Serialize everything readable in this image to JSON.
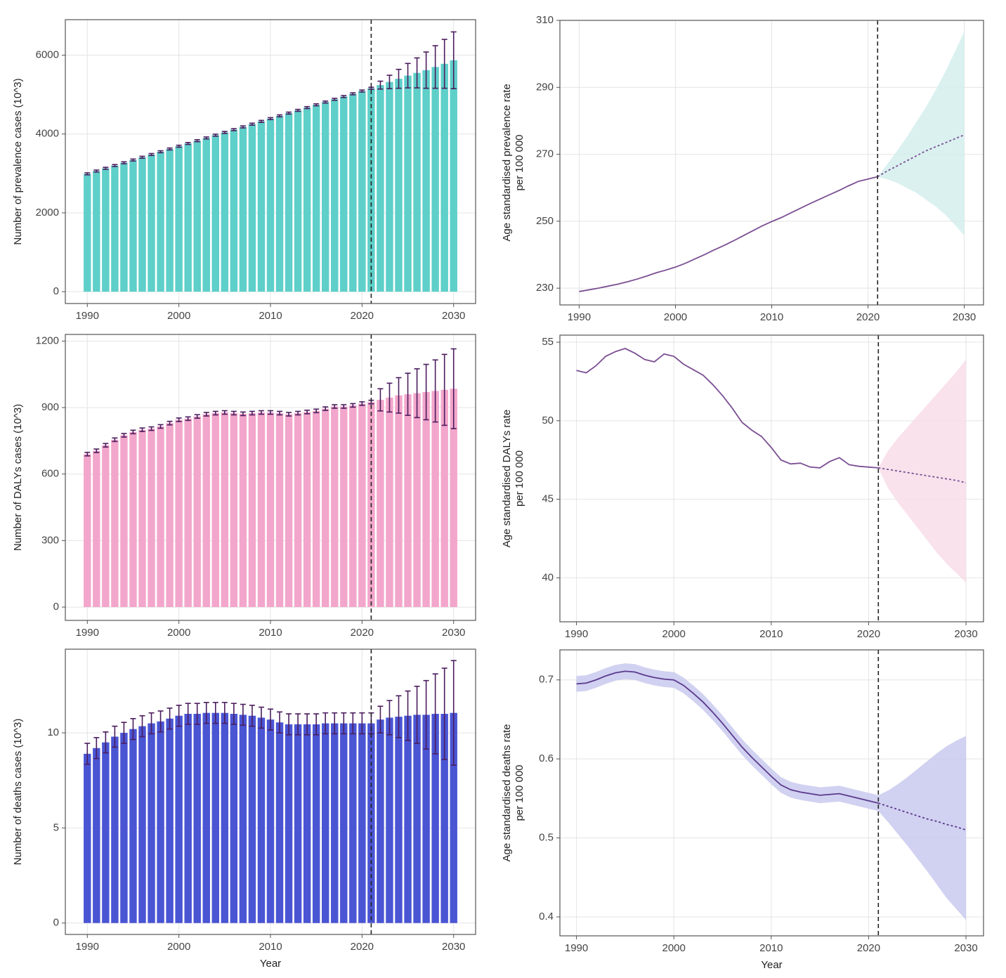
{
  "chart_data": [
    {
      "type": "bar",
      "ylabel": [
        "Number of prevalence cases (10^3)"
      ],
      "x": [
        1990,
        1991,
        1992,
        1993,
        1994,
        1995,
        1996,
        1997,
        1998,
        1999,
        2000,
        2001,
        2002,
        2003,
        2004,
        2005,
        2006,
        2007,
        2008,
        2009,
        2010,
        2011,
        2012,
        2013,
        2014,
        2015,
        2016,
        2017,
        2018,
        2019,
        2020,
        2021,
        2022,
        2023,
        2024,
        2025,
        2026,
        2027,
        2028,
        2029,
        2030
      ],
      "values": [
        2990,
        3060,
        3130,
        3200,
        3270,
        3340,
        3410,
        3480,
        3550,
        3620,
        3690,
        3760,
        3830,
        3900,
        3970,
        4040,
        4110,
        4180,
        4250,
        4320,
        4390,
        4460,
        4530,
        4600,
        4670,
        4740,
        4810,
        4880,
        4950,
        5020,
        5090,
        5160,
        5240,
        5320,
        5400,
        5480,
        5550,
        5620,
        5700,
        5780,
        5870
      ],
      "errors": [
        25,
        25,
        25,
        25,
        25,
        25,
        25,
        25,
        25,
        25,
        25,
        25,
        25,
        25,
        25,
        25,
        25,
        25,
        25,
        25,
        25,
        25,
        25,
        25,
        25,
        25,
        25,
        25,
        25,
        25,
        25,
        25,
        100,
        170,
        240,
        310,
        380,
        460,
        540,
        620,
        720
      ],
      "color": "#5ecfc9",
      "error_color": "#4b1d5e",
      "xlim": [
        1987.6,
        2032.4
      ],
      "xticks": [
        1990,
        2000,
        2010,
        2020,
        2030
      ],
      "ylim": [
        -300,
        6900
      ],
      "yticks": [
        0,
        2000,
        4000,
        6000
      ],
      "vline": 2021,
      "grid": true
    },
    {
      "type": "line",
      "ylabel": [
        "Age standardised prevalence rate",
        "per 100 000"
      ],
      "series": [
        {
          "x": [
            1990,
            1991,
            1992,
            1993,
            1994,
            1995,
            1996,
            1997,
            1998,
            1999,
            2000,
            2001,
            2002,
            2003,
            2004,
            2005,
            2006,
            2007,
            2008,
            2009,
            2010,
            2011,
            2012,
            2013,
            2014,
            2015,
            2016,
            2017,
            2018,
            2019,
            2020,
            2021
          ],
          "values": [
            229,
            229.5,
            230,
            230.6,
            231.2,
            231.9,
            232.7,
            233.6,
            234.6,
            235.4,
            236.3,
            237.4,
            238.7,
            240,
            241.4,
            242.7,
            244.1,
            245.6,
            247.1,
            248.6,
            249.9,
            251.1,
            252.5,
            253.9,
            255.3,
            256.6,
            257.9,
            259.2,
            260.6,
            261.9,
            262.6,
            263.3
          ],
          "color": "#7b4f93",
          "dashed": false
        },
        {
          "x": [
            2021,
            2022,
            2023,
            2024,
            2025,
            2026,
            2027,
            2028,
            2029,
            2030
          ],
          "values": [
            263.3,
            265,
            266.5,
            268,
            269.5,
            271,
            272.2,
            273.4,
            274.6,
            275.8
          ],
          "upper": [
            263.3,
            267,
            271,
            275,
            279.5,
            284,
            289,
            294.5,
            300.5,
            306.6
          ],
          "lower": [
            263.3,
            262.5,
            261.5,
            260,
            258.5,
            256.5,
            254.5,
            252,
            249,
            245.7
          ],
          "color": "#7b4f93",
          "band_color": "#d4efed",
          "dashed": true
        }
      ],
      "xlim": [
        1988,
        2032
      ],
      "xticks": [
        1990,
        2000,
        2010,
        2020,
        2030
      ],
      "ylim": [
        225,
        310
      ],
      "yticks": [
        230,
        250,
        270,
        290,
        310
      ],
      "vline": 2021,
      "grid": true
    },
    {
      "type": "bar",
      "ylabel": [
        "Number of DALYs cases (10^3)"
      ],
      "x": [
        1990,
        1991,
        1992,
        1993,
        1994,
        1995,
        1996,
        1997,
        1998,
        1999,
        2000,
        2001,
        2002,
        2003,
        2004,
        2005,
        2006,
        2007,
        2008,
        2009,
        2010,
        2011,
        2012,
        2013,
        2014,
        2015,
        2016,
        2017,
        2018,
        2019,
        2020,
        2021,
        2022,
        2023,
        2024,
        2025,
        2026,
        2027,
        2028,
        2029,
        2030
      ],
      "values": [
        690,
        705,
        730,
        755,
        775,
        790,
        800,
        805,
        815,
        830,
        845,
        850,
        860,
        870,
        875,
        878,
        875,
        872,
        875,
        878,
        878,
        875,
        870,
        875,
        880,
        885,
        895,
        905,
        905,
        910,
        918,
        925,
        935,
        945,
        955,
        960,
        965,
        970,
        975,
        980,
        985
      ],
      "errors": [
        8,
        8,
        8,
        8,
        8,
        8,
        8,
        8,
        8,
        8,
        8,
        8,
        8,
        8,
        8,
        8,
        8,
        8,
        8,
        8,
        8,
        8,
        8,
        8,
        8,
        8,
        8,
        8,
        8,
        8,
        8,
        8,
        50,
        65,
        80,
        95,
        110,
        125,
        140,
        160,
        180
      ],
      "color": "#f3a6cb",
      "error_color": "#4b1d5e",
      "xlim": [
        1987.6,
        2032.4
      ],
      "xticks": [
        1990,
        2000,
        2010,
        2020,
        2030
      ],
      "ylim": [
        -60,
        1230
      ],
      "yticks": [
        0,
        300,
        600,
        900,
        1200
      ],
      "vline": 2021,
      "grid": true
    },
    {
      "type": "line",
      "ylabel": [
        "Age standardised DALYs rate",
        "per 100 000"
      ],
      "series": [
        {
          "x": [
            1990,
            1991,
            1992,
            1993,
            1994,
            1995,
            1996,
            1997,
            1998,
            1999,
            2000,
            2001,
            2002,
            2003,
            2004,
            2005,
            2006,
            2007,
            2008,
            2009,
            2010,
            2011,
            2012,
            2013,
            2014,
            2015,
            2016,
            2017,
            2018,
            2019,
            2020,
            2021
          ],
          "values": [
            53.2,
            53.05,
            53.5,
            54.1,
            54.4,
            54.6,
            54.3,
            53.9,
            53.75,
            54.25,
            54.1,
            53.6,
            53.25,
            52.9,
            52.3,
            51.6,
            50.8,
            49.9,
            49.4,
            49,
            48.3,
            47.5,
            47.25,
            47.3,
            47.05,
            47,
            47.4,
            47.65,
            47.2,
            47.1,
            47.05,
            47
          ],
          "color": "#7b4f93",
          "dashed": false
        },
        {
          "x": [
            2021,
            2022,
            2023,
            2024,
            2025,
            2026,
            2027,
            2028,
            2029,
            2030
          ],
          "values": [
            47,
            46.9,
            46.8,
            46.7,
            46.6,
            46.5,
            46.4,
            46.3,
            46.2,
            46.05
          ],
          "upper": [
            47,
            48.1,
            48.9,
            49.6,
            50.3,
            51,
            51.7,
            52.4,
            53.1,
            53.9
          ],
          "lower": [
            47,
            45.7,
            44.8,
            44,
            43.2,
            42.4,
            41.6,
            40.9,
            40.3,
            39.7
          ],
          "color": "#7b4f93",
          "band_color": "#f8dde9",
          "dashed": true
        }
      ],
      "xlim": [
        1988.3,
        2031.8
      ],
      "xticks": [
        1990,
        2000,
        2010,
        2020,
        2030
      ],
      "ylim": [
        37.2,
        55.45
      ],
      "yticks": [
        40,
        45,
        50,
        55
      ],
      "vline": 2021,
      "grid": true
    },
    {
      "type": "bar",
      "ylabel": [
        "Number of deaths cases (10^3)"
      ],
      "xlabel": "Year",
      "x": [
        1990,
        1991,
        1992,
        1993,
        1994,
        1995,
        1996,
        1997,
        1998,
        1999,
        2000,
        2001,
        2002,
        2003,
        2004,
        2005,
        2006,
        2007,
        2008,
        2009,
        2010,
        2011,
        2012,
        2013,
        2014,
        2015,
        2016,
        2017,
        2018,
        2019,
        2020,
        2021,
        2022,
        2023,
        2024,
        2025,
        2026,
        2027,
        2028,
        2029,
        2030
      ],
      "values": [
        8.9,
        9.2,
        9.5,
        9.8,
        10,
        10.2,
        10.35,
        10.5,
        10.6,
        10.75,
        10.9,
        11,
        11,
        11.05,
        11.05,
        11.05,
        11,
        10.95,
        10.9,
        10.8,
        10.7,
        10.55,
        10.45,
        10.45,
        10.45,
        10.45,
        10.5,
        10.5,
        10.5,
        10.5,
        10.5,
        10.5,
        10.7,
        10.8,
        10.85,
        10.9,
        10.95,
        10.95,
        11,
        11,
        11.05
      ],
      "errors": [
        0.55,
        0.55,
        0.55,
        0.55,
        0.55,
        0.55,
        0.55,
        0.55,
        0.55,
        0.55,
        0.55,
        0.55,
        0.55,
        0.55,
        0.55,
        0.55,
        0.55,
        0.55,
        0.55,
        0.55,
        0.55,
        0.55,
        0.55,
        0.55,
        0.55,
        0.55,
        0.55,
        0.55,
        0.55,
        0.55,
        0.55,
        0.55,
        0.7,
        0.9,
        1.1,
        1.3,
        1.5,
        1.8,
        2.1,
        2.4,
        2.75
      ],
      "color": "#4a55d4",
      "error_color": "#4b1d5e",
      "xlim": [
        1987.6,
        2032.4
      ],
      "xticks": [
        1990,
        2000,
        2010,
        2020,
        2030
      ],
      "ylim": [
        -0.6,
        14.4
      ],
      "yticks": [
        0,
        5,
        10
      ],
      "vline": 2021,
      "grid": true
    },
    {
      "type": "line",
      "ylabel": [
        "Age standardised deaths rate",
        "per 100 000"
      ],
      "xlabel": "Year",
      "series": [
        {
          "x": [
            1990,
            1991,
            1992,
            1993,
            1994,
            1995,
            1996,
            1997,
            1998,
            1999,
            2000,
            2001,
            2002,
            2003,
            2004,
            2005,
            2006,
            2007,
            2008,
            2009,
            2010,
            2011,
            2012,
            2013,
            2014,
            2015,
            2016,
            2017,
            2018,
            2019,
            2020,
            2021
          ],
          "values": [
            0.695,
            0.696,
            0.7,
            0.705,
            0.709,
            0.711,
            0.71,
            0.706,
            0.703,
            0.701,
            0.7,
            0.693,
            0.683,
            0.672,
            0.659,
            0.645,
            0.63,
            0.615,
            0.602,
            0.59,
            0.578,
            0.567,
            0.561,
            0.558,
            0.556,
            0.554,
            0.555,
            0.556,
            0.553,
            0.55,
            0.547,
            0.544
          ],
          "upper": [
            0.705,
            0.706,
            0.71,
            0.715,
            0.719,
            0.721,
            0.72,
            0.716,
            0.713,
            0.711,
            0.71,
            0.703,
            0.693,
            0.682,
            0.669,
            0.655,
            0.64,
            0.625,
            0.612,
            0.6,
            0.588,
            0.577,
            0.571,
            0.568,
            0.566,
            0.564,
            0.565,
            0.566,
            0.563,
            0.56,
            0.557,
            0.554
          ],
          "lower": [
            0.685,
            0.686,
            0.69,
            0.695,
            0.699,
            0.701,
            0.7,
            0.696,
            0.693,
            0.691,
            0.69,
            0.683,
            0.673,
            0.662,
            0.649,
            0.635,
            0.62,
            0.605,
            0.592,
            0.58,
            0.568,
            0.557,
            0.551,
            0.548,
            0.546,
            0.544,
            0.545,
            0.546,
            0.543,
            0.54,
            0.537,
            0.534
          ],
          "color": "#5a3a8c",
          "band_color": "#c9c9ee",
          "dashed": false
        },
        {
          "x": [
            2021,
            2022,
            2023,
            2024,
            2025,
            2026,
            2027,
            2028,
            2029,
            2030
          ],
          "values": [
            0.544,
            0.54,
            0.536,
            0.532,
            0.528,
            0.524,
            0.521,
            0.517,
            0.514,
            0.51
          ],
          "upper": [
            0.554,
            0.56,
            0.568,
            0.577,
            0.587,
            0.597,
            0.607,
            0.616,
            0.623,
            0.629
          ],
          "lower": [
            0.534,
            0.52,
            0.505,
            0.49,
            0.474,
            0.458,
            0.441,
            0.424,
            0.41,
            0.396
          ],
          "color": "#5a3a8c",
          "band_color": "#c9c9ee",
          "dashed": true
        }
      ],
      "xlim": [
        1988.3,
        2031.8
      ],
      "xticks": [
        1990,
        2000,
        2010,
        2020,
        2030
      ],
      "ylim": [
        0.376,
        0.738
      ],
      "yticks": [
        0.4,
        0.5,
        0.6,
        0.7
      ],
      "vline": 2021,
      "grid": true
    }
  ]
}
